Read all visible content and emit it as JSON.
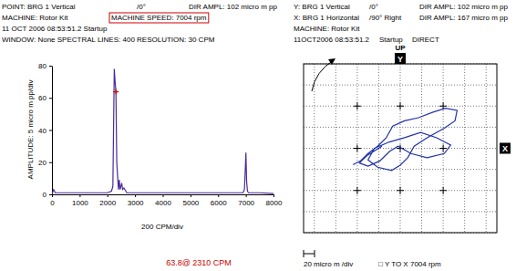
{
  "chart_data": [
    {
      "type": "line",
      "header": [
        [
          {
            "text": "POINT: BRG 1 Vertical"
          },
          {
            "text": "/0°"
          },
          {
            "text": "DIR AMPL: 102 micro m pp"
          }
        ],
        [
          {
            "text": "MACHINE: Rotor Kit"
          },
          {
            "text": "MACHINE SPEED: 7004 rpm",
            "highlight": true
          }
        ],
        [
          {
            "text": "11 OCT 2006 08:53:51.2  Startup"
          }
        ],
        [
          {
            "text": "WINDOW: None  SPECTRAL LINES: 400  RESOLUTION: 30 CPM"
          }
        ]
      ],
      "ylabel": "AMPLITUDE: 5 micro m pp/div",
      "xlabel": "200 CPM/div",
      "x": [
        0,
        60,
        120,
        300,
        600,
        900,
        1200,
        1500,
        1800,
        2000,
        2150,
        2200,
        2250,
        2280,
        2310,
        2340,
        2400,
        2430,
        2460,
        2520,
        2550,
        2600,
        2700,
        3000,
        3500,
        4000,
        4500,
        5000,
        5500,
        6000,
        6500,
        6900,
        6950,
        6980,
        7004,
        7030,
        7060,
        7100,
        7500,
        8000
      ],
      "values": [
        0,
        3,
        1,
        1,
        1,
        1,
        1,
        1,
        1,
        1,
        2,
        5,
        78,
        70,
        63.8,
        20,
        3,
        9,
        3,
        7,
        3,
        4,
        1,
        1,
        1,
        1,
        1,
        1,
        1,
        1,
        1,
        1,
        3,
        15,
        26,
        8,
        2,
        1,
        1,
        0.5
      ],
      "color": "#4b2a9a",
      "xlim": [
        0,
        8000
      ],
      "xticks": [
        0,
        1000,
        2000,
        3000,
        4000,
        5000,
        6000,
        7000,
        8000
      ],
      "ylim": [
        0,
        80
      ],
      "yticks": [
        0,
        20,
        40,
        60,
        80
      ],
      "grid": false,
      "annotations": [
        {
          "text": "63.8@ 2310 CPM",
          "x": 2310,
          "y": 63.8,
          "color": "#cc0000"
        }
      ]
    },
    {
      "type": "line",
      "header": [
        [
          {
            "text": "Y: BRG 1 Vertical"
          },
          {
            "text": "/0°"
          },
          {
            "text": "DIR AMPL: 102 micro m pp"
          }
        ],
        [
          {
            "text": "X: BRG 1 Horizontal"
          },
          {
            "text": "/90° Right"
          },
          {
            "text": "DIR AMPL: 167 micro m pp"
          }
        ],
        [
          {
            "text": "MACHINE: Rotor Kit"
          }
        ],
        [
          {
            "text": "11OCT2006 08:53:51.2"
          },
          {
            "text": "Startup"
          },
          {
            "text": "DIRECT"
          }
        ]
      ],
      "top_label": "UP",
      "ylabel": "Y",
      "xlabel": "X",
      "footer": [
        {
          "text": "20 micro m /div"
        },
        {
          "text": "□ Y TO X  7004 rpm"
        }
      ],
      "x": [
        -44,
        -37,
        -30,
        -21,
        -13,
        -7,
        4,
        17,
        30,
        42,
        53,
        51,
        41,
        25,
        13,
        7,
        0,
        -8,
        -21,
        -30,
        -24,
        -10,
        4,
        19,
        34,
        47,
        41,
        25,
        10,
        -2,
        -10,
        -19,
        -30,
        -38,
        -31,
        -17
      ],
      "values": [
        -15.5,
        -12,
        -5,
        2,
        10,
        21,
        26,
        29,
        34,
        38,
        36,
        26,
        19,
        10,
        2,
        -9,
        -16,
        -21,
        -18,
        -11,
        0,
        6,
        10,
        15,
        10,
        3,
        -5,
        -9,
        -5,
        2,
        -3,
        -12,
        -17,
        -14,
        -7,
        2
      ],
      "color": "#2233aa",
      "xlim": [
        -90,
        90
      ],
      "xticks": [
        -80,
        -60,
        -40,
        -20,
        0,
        20,
        40,
        60,
        80
      ],
      "ylim": [
        -80,
        80
      ],
      "yticks": [
        -80,
        -60,
        -40,
        -20,
        0,
        20,
        40,
        60,
        80
      ],
      "grid": true,
      "tick_labels": false
    }
  ]
}
